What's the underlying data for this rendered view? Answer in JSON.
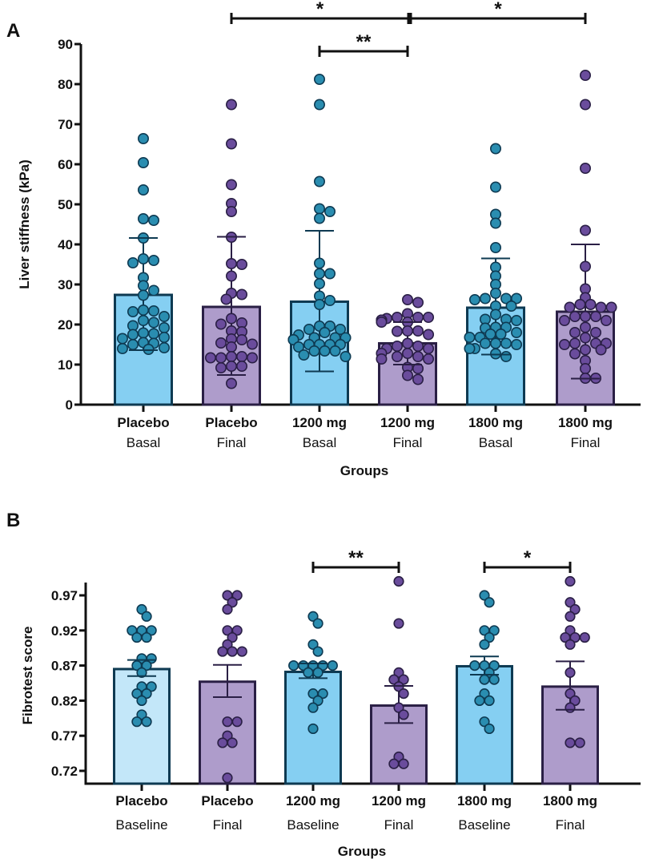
{
  "colors": {
    "basal_fill": "#85CFF2",
    "basal_fill_light": "#C3E7F9",
    "basal_stroke": "#0E3A52",
    "basal_dot": "#2A8DB0",
    "final_fill": "#AE9CCB",
    "final_stroke": "#2A1F45",
    "final_dot": "#6A4C9C",
    "axis": "#111111"
  },
  "chart_data": [
    {
      "panel": "A",
      "type": "bar",
      "title": "",
      "xlabel": "Groups",
      "ylabel": "Liver stiffness (kPa)",
      "ylim": [
        0,
        90
      ],
      "yticks": [
        0,
        10,
        20,
        30,
        40,
        50,
        60,
        70,
        80,
        90
      ],
      "ytick_labels": [
        "0",
        "10",
        "20",
        "30",
        "40",
        "50",
        "60",
        "70",
        "80",
        "90"
      ],
      "grid": false,
      "categories": [
        {
          "line1": "Placebo",
          "line2": "Basal",
          "kind": "basal"
        },
        {
          "line1": "Placebo",
          "line2": "Final",
          "kind": "final"
        },
        {
          "line1": "1200 mg",
          "line2": "Basal",
          "kind": "basal"
        },
        {
          "line1": "1200 mg",
          "line2": "Final",
          "kind": "final"
        },
        {
          "line1": "1800 mg",
          "line2": "Basal",
          "kind": "basal"
        },
        {
          "line1": "1800 mg",
          "line2": "Final",
          "kind": "final"
        }
      ],
      "values": [
        27.4,
        24.4,
        25.7,
        15.3,
        24.2,
        23.2
      ],
      "error_upper": [
        41.6,
        41.9,
        43.4,
        20.6,
        36.5,
        40.0
      ],
      "error_lower": [
        13.6,
        7.4,
        8.3,
        10.0,
        12.5,
        6.5
      ],
      "points": [
        [
          66.4,
          60.4,
          53.6,
          46.4,
          46.0,
          41.6,
          36.4,
          36.0,
          35.4,
          31.7,
          29.7,
          28.5,
          27.3,
          23.4,
          23.2,
          23.6,
          22.0,
          21.0,
          20.5,
          19.7,
          19.2,
          17.7,
          17.5,
          17.9,
          16.8,
          16.5,
          15.5,
          15.3,
          15.0,
          14.0,
          14.2,
          13.8
        ],
        [
          74.9,
          65.1,
          54.9,
          50.2,
          48.2,
          41.8,
          35.2,
          35.0,
          32.1,
          27.5,
          27.8,
          26.3,
          21.5,
          20.4,
          20.1,
          18.4,
          18.2,
          16.4,
          16.2,
          15.4,
          15.1,
          14.4,
          12.0,
          12.0,
          11.7,
          11.7,
          11.7,
          9.6,
          9.6,
          9.2,
          5.3
        ],
        [
          81.2,
          74.9,
          55.7,
          48.9,
          48.2,
          46.5,
          35.3,
          32.7,
          32.7,
          30.2,
          27.1,
          26.0,
          25.0,
          19.6,
          19.6,
          18.8,
          18.8,
          18.0,
          17.4,
          16.7,
          16.7,
          16.7,
          16.2,
          16.2,
          15.0,
          15.0,
          15.0,
          15.0,
          14.4,
          13.4,
          13.4,
          13.4,
          12.4,
          12.0
        ],
        [
          26.2,
          25.5,
          22.7,
          21.8,
          21.8,
          21.8,
          21.5,
          21.1,
          21.1,
          21.1,
          20.6,
          20.6,
          18.4,
          18.4,
          18.3,
          17.5,
          15.3,
          14.6,
          14.6,
          14.0,
          14.0,
          12.8,
          12.8,
          12.0,
          12.0,
          11.4,
          11.4,
          9.3,
          9.0,
          7.3,
          6.3
        ],
        [
          63.9,
          54.3,
          47.5,
          45.3,
          39.2,
          34.3,
          32.1,
          30.0,
          27.8,
          26.5,
          26.5,
          26.5,
          26.2,
          24.6,
          24.6,
          22.5,
          21.3,
          21.3,
          21.0,
          19.3,
          19.3,
          19.1,
          18.0,
          17.6,
          17.6,
          16.8,
          16.8,
          15.3,
          15.3,
          15.3,
          15.0,
          14.0,
          14.0,
          12.7,
          12.0
        ],
        [
          82.2,
          74.9,
          59.0,
          43.5,
          34.5,
          28.9,
          26.7,
          25.0,
          25.0,
          24.3,
          24.3,
          24.3,
          22.0,
          22.0,
          22.0,
          21.0,
          21.0,
          19.3,
          18.0,
          18.0,
          16.7,
          15.3,
          15.3,
          15.3,
          15.0,
          13.7,
          13.7,
          12.7,
          11.0,
          9.0,
          6.6,
          6.6
        ]
      ],
      "significance": [
        {
          "from": 1,
          "to": 3,
          "label": "*",
          "level": "top"
        },
        {
          "from": 3,
          "to": 5,
          "label": "*",
          "level": "top"
        },
        {
          "from": 2,
          "to": 3,
          "label": "**",
          "level": "low"
        }
      ]
    },
    {
      "panel": "B",
      "type": "bar",
      "title": "",
      "xlabel": "Groups",
      "ylabel": "Fibrotest score",
      "ylim": [
        0.702,
        0.988
      ],
      "yticks": [
        0.72,
        0.77,
        0.82,
        0.87,
        0.92,
        0.97
      ],
      "ytick_labels": [
        "0.72",
        "0.77",
        "0.82",
        "0.87",
        "0.92",
        "0.97"
      ],
      "grid": false,
      "categories": [
        {
          "line1": "Placebo",
          "line2": "Baseline",
          "kind": "basal_light"
        },
        {
          "line1": "Placebo",
          "line2": "Final",
          "kind": "final"
        },
        {
          "line1": "1200 mg",
          "line2": "Baseline",
          "kind": "basal"
        },
        {
          "line1": "1200 mg",
          "line2": "Final",
          "kind": "final"
        },
        {
          "line1": "1800 mg",
          "line2": "Baseline",
          "kind": "basal"
        },
        {
          "line1": "1800 mg",
          "line2": "Final",
          "kind": "final"
        }
      ],
      "values": [
        0.865,
        0.847,
        0.861,
        0.813,
        0.869,
        0.84
      ],
      "error_upper": [
        0.878,
        0.871,
        0.873,
        0.841,
        0.883,
        0.876
      ],
      "error_lower": [
        0.855,
        0.825,
        0.852,
        0.788,
        0.857,
        0.807
      ],
      "points": [
        [
          0.95,
          0.94,
          0.92,
          0.92,
          0.92,
          0.91,
          0.91,
          0.88,
          0.88,
          0.87,
          0.87,
          0.86,
          0.84,
          0.84,
          0.83,
          0.83,
          0.82,
          0.8,
          0.79,
          0.79
        ],
        [
          0.97,
          0.97,
          0.96,
          0.95,
          0.92,
          0.92,
          0.91,
          0.9,
          0.89,
          0.89,
          0.89,
          0.79,
          0.79,
          0.77,
          0.76,
          0.76,
          0.71
        ],
        [
          0.94,
          0.93,
          0.9,
          0.89,
          0.87,
          0.87,
          0.87,
          0.87,
          0.87,
          0.86,
          0.86,
          0.83,
          0.83,
          0.82,
          0.81,
          0.78
        ],
        [
          0.99,
          0.93,
          0.86,
          0.85,
          0.85,
          0.84,
          0.83,
          0.81,
          0.8,
          0.74,
          0.73,
          0.73
        ],
        [
          0.97,
          0.96,
          0.92,
          0.92,
          0.91,
          0.9,
          0.87,
          0.87,
          0.87,
          0.86,
          0.85,
          0.85,
          0.83,
          0.82,
          0.82,
          0.79,
          0.78
        ],
        [
          0.99,
          0.96,
          0.95,
          0.94,
          0.92,
          0.91,
          0.91,
          0.91,
          0.9,
          0.86,
          0.83,
          0.82,
          0.81,
          0.76,
          0.76
        ]
      ],
      "significance": [
        {
          "from": 2,
          "to": 3,
          "label": "**",
          "level": "top"
        },
        {
          "from": 4,
          "to": 5,
          "label": "*",
          "level": "top"
        }
      ]
    }
  ]
}
